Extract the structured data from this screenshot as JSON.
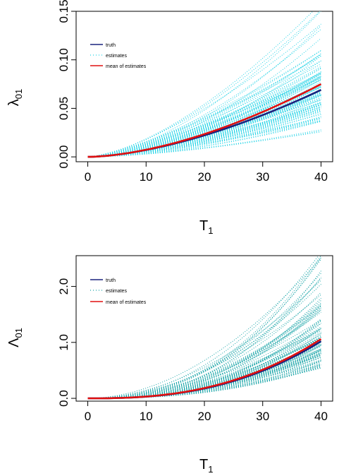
{
  "colors": {
    "truth": "#1a237e",
    "mean": "#e01010",
    "estimates_top": "#22d3e6",
    "estimates_bottom": "#1aa5a8"
  },
  "chart_data": [
    {
      "type": "line",
      "xlabel": "T",
      "xlabel_sub": "1",
      "ylabel": "λ",
      "ylabel_sub": "01",
      "xlim": [
        -2,
        42
      ],
      "ylim": [
        -0.005,
        0.15
      ],
      "x_ticks": [
        0,
        10,
        20,
        30,
        40
      ],
      "x_tick_labels": [
        "0",
        "10",
        "20",
        "30",
        "40"
      ],
      "y_ticks": [
        0.0,
        0.05,
        0.1,
        0.15
      ],
      "y_tick_labels": [
        "0.00",
        "0.05",
        "0.10",
        "0.15"
      ],
      "legend": {
        "position": "top-left",
        "entries": [
          "truth",
          "estimates",
          "mean of estimates"
        ]
      },
      "truth": {
        "x": [
          0,
          10,
          20,
          30,
          40
        ],
        "y": [
          0.0,
          0.0061,
          0.0222,
          0.0433,
          0.069
        ]
      },
      "mean_of_estimates": {
        "x": [
          0,
          10,
          20,
          30,
          40
        ],
        "y": [
          0.0,
          0.0064,
          0.0235,
          0.0462,
          0.075
        ]
      },
      "estimates": {
        "count": 100,
        "y_at_40_range": [
          0.023,
          0.16
        ]
      }
    },
    {
      "type": "line",
      "xlabel": "T",
      "xlabel_sub": "1",
      "ylabel": "Λ",
      "ylabel_sub": "01",
      "xlim": [
        -2,
        42
      ],
      "ylim": [
        -0.05,
        2.55
      ],
      "x_ticks": [
        0,
        10,
        20,
        30,
        40
      ],
      "x_tick_labels": [
        "0",
        "10",
        "20",
        "30",
        "40"
      ],
      "y_ticks": [
        0.0,
        1.0,
        2.0
      ],
      "y_tick_labels": [
        "0.0",
        "1.0",
        "2.0"
      ],
      "legend": {
        "position": "top-left",
        "entries": [
          "truth",
          "estimates",
          "mean of estimates"
        ]
      },
      "truth": {
        "x": [
          0,
          10,
          20,
          30,
          40
        ],
        "y": [
          0.0,
          0.04,
          0.176,
          0.46,
          1.02
        ]
      },
      "mean_of_estimates": {
        "x": [
          0,
          10,
          20,
          30,
          40
        ],
        "y": [
          0.0,
          0.042,
          0.184,
          0.48,
          1.06
        ]
      },
      "estimates": {
        "count": 100,
        "y_at_40_range": [
          0.5,
          2.65
        ]
      }
    }
  ]
}
